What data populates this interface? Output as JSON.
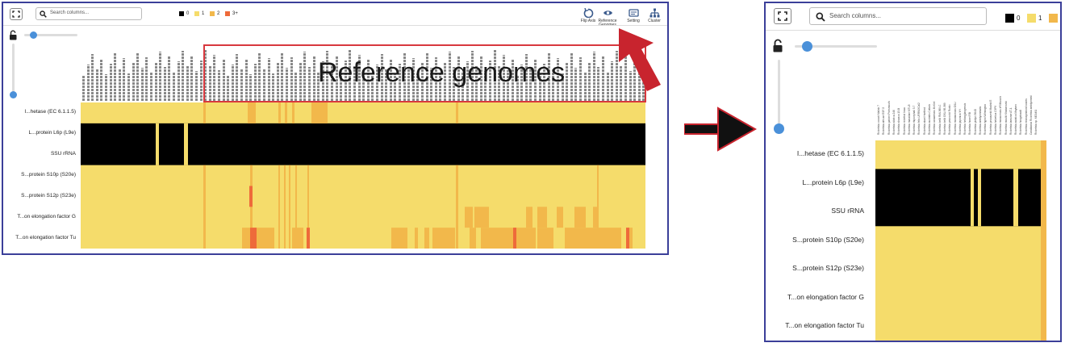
{
  "left_panel": {
    "search": {
      "placeholder": "Search columns..."
    },
    "legend": [
      {
        "label": "0",
        "color": "#000000"
      },
      {
        "label": "1",
        "color": "#f5dc6b"
      },
      {
        "label": "2",
        "color": "#f2b84b"
      },
      {
        "label": "3+",
        "color": "#ee6a3a"
      }
    ],
    "toolbar": [
      {
        "label": "Flip Axis",
        "icon": "flip-axis-icon"
      },
      {
        "label": "Reference Genomes",
        "icon": "eye-icon"
      },
      {
        "label": "Setting",
        "icon": "settings-icon"
      },
      {
        "label": "Cluster",
        "icon": "cluster-icon"
      }
    ],
    "callout": {
      "text": "Reference genomes"
    },
    "rows": [
      "I...hetase (EC 6.1.1.5)",
      "L...protein L6p (L9e)",
      "SSU rRNA",
      "S...protein S10p (S20e)",
      "S...protein S12p (S23e)",
      "T...on elongation factor G",
      "T...on elongation factor Tu"
    ]
  },
  "right_panel": {
    "search": {
      "placeholder": "Search columns..."
    },
    "legend": [
      {
        "label": "0",
        "color": "#000000"
      },
      {
        "label": "1",
        "color": "#f5dc6b"
      },
      {
        "label": "",
        "color": "#f2b84b"
      }
    ],
    "rows": [
      "I...hetase (EC 6.1.1.5)",
      "L...protein L6p (L9e)",
      "SSU rRNA",
      "S...protein S10p (S20e)",
      "S...protein S12p (S23e)",
      "T...on elongation factor G",
      "T...on elongation factor Tu"
    ],
    "columns": [
      "Rickettsia conorii Malish 7",
      "Rickettsia africae ESF-5",
      "Rickettsia parkeri Portsmouth",
      "Rickettsia sibirica 246",
      "Rickettsia slovaca 13-B",
      "Rickettsia rickettsii Iowa",
      "Rickettsia massiliae MTU5",
      "Rickettsia rhipicephali 3-7",
      "Rickettsia felis URRWXCal2",
      "Rickettsia akari Hartford",
      "Rickettsia australis Cutlack",
      "Rickettsia canadensis McKiel",
      "Rickettsia bellii RML369-C",
      "Rickettsia bellii OSU 85-389",
      "Rickettsia peacockii Rustic",
      "Rickettsia montanensis OSU",
      "Rickettsia japonica YH",
      "Rickettsia heilongjiangensis",
      "Rickettsia honei RB",
      "Rickettsia philipii 364D",
      "Rickettsia amblyommatis",
      "Rickettsia typhi Wilmington",
      "Rickettsia prowazekii Madrid E",
      "Rickettsia helvetica C9P9",
      "Rickettsia monacensis IrR/Munich",
      "Rickettsia raoultii Khabarovsk",
      "Rickettsia tamurae AT-1",
      "Rickettsia asiatica Maytaro",
      "Rickettsia hoogstraalii",
      "Rickettsia endosymbiont Ixodes",
      "Candidatus Rickettsia amblyommii",
      "Rickettsia sp. MEAM1"
    ]
  }
}
